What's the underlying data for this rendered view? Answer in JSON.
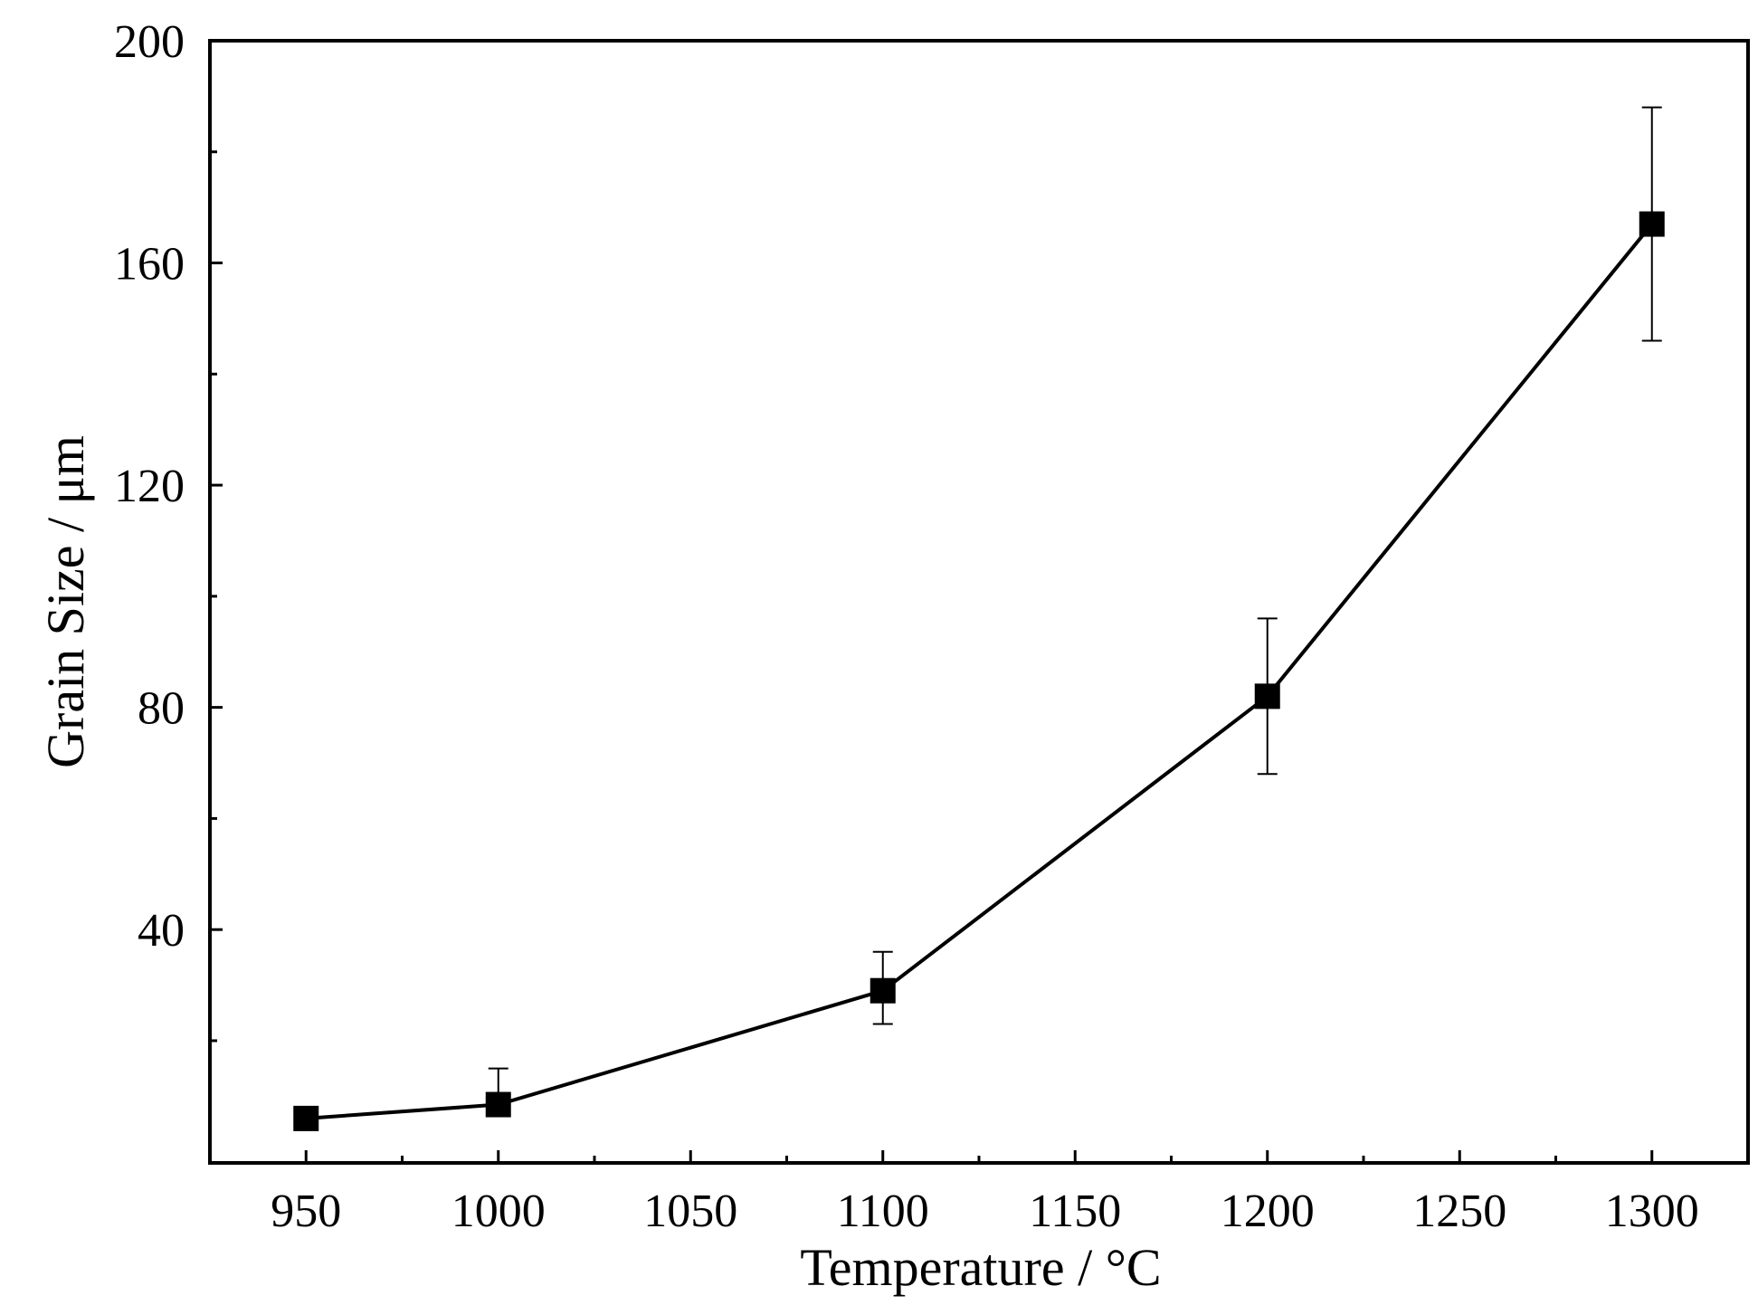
{
  "chart_data": {
    "type": "line",
    "xlabel": "Temperature / °C",
    "ylabel": "Grain Size / μm",
    "xlim": [
      925,
      1325
    ],
    "ylim": [
      -2,
      200
    ],
    "x_ticks": [
      950,
      1000,
      1050,
      1100,
      1150,
      1200,
      1250,
      1300
    ],
    "x_tick_labels": [
      "950",
      "1000",
      "1050",
      "1100",
      "1150",
      "1200",
      "1250",
      "1300"
    ],
    "x_minor_ticks": [
      975,
      1025,
      1075,
      1125,
      1175,
      1225,
      1275
    ],
    "y_ticks": [
      40,
      80,
      120,
      160,
      200
    ],
    "y_tick_labels": [
      "40",
      "80",
      "120",
      "160",
      "200"
    ],
    "y_minor_ticks": [
      20,
      60,
      100,
      140,
      180
    ],
    "grid": false,
    "marker": "square",
    "line_color": "#000000",
    "series": [
      {
        "x": [
          950,
          1000,
          1100,
          1200,
          1300
        ],
        "y": [
          6,
          8.5,
          29,
          82,
          167
        ],
        "error": [
          [
            6,
            6
          ],
          [
            7,
            15
          ],
          [
            23,
            36
          ],
          [
            68,
            96
          ],
          [
            146,
            188
          ]
        ]
      }
    ]
  }
}
